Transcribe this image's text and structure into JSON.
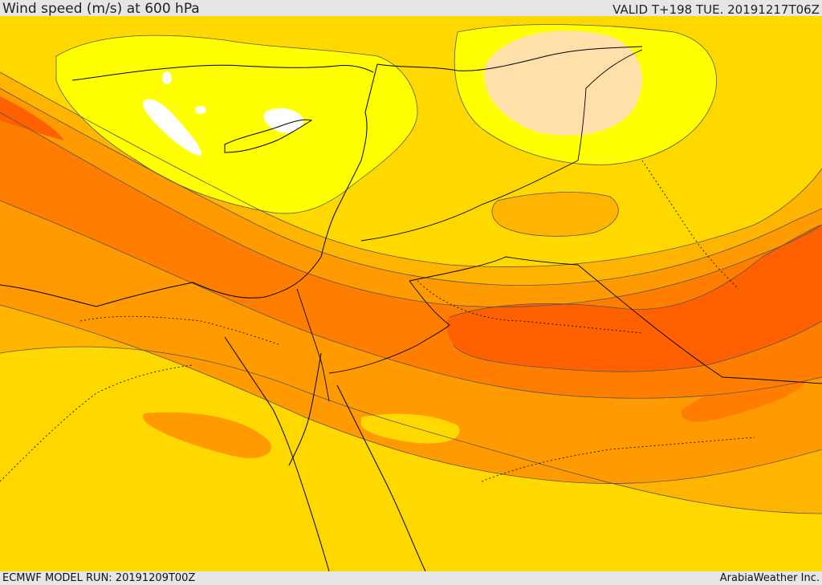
{
  "header": {
    "title": "Wind speed (m/s) at 600 hPa",
    "valid": "VALID T+198 TUE. 20191217T06Z"
  },
  "footer": {
    "model_run": "ECMWF MODEL RUN: 20191209T00Z",
    "credit": "ArabiaWeather Inc."
  },
  "colors": {
    "calm": "#ffffff",
    "light": "#ffe0a8",
    "band1": "#ffff00",
    "band2": "#ffd800",
    "band3": "#ffb400",
    "band4": "#ff9a00",
    "band5": "#ff7e00",
    "band6": "#ff6000",
    "coast": "#000000",
    "contour": "#555555"
  }
}
